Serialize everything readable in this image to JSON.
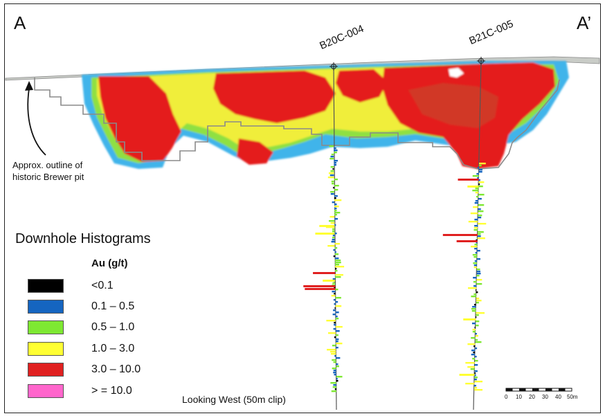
{
  "section": {
    "left_label": "A",
    "right_label": "A’",
    "drillholes": [
      {
        "name": "B20C-004"
      },
      {
        "name": "B21C-005"
      }
    ],
    "pit_annotation": [
      "Approx. outline of",
      "historic Brewer pit"
    ],
    "view_note": "Looking West (50m clip)"
  },
  "legend": {
    "title": "Downhole Histograms",
    "unit_header": "Au (g/t)",
    "classes": [
      {
        "label": "<0.1",
        "color": "#000000"
      },
      {
        "label": "0.1 – 0.5",
        "color": "#1565c0"
      },
      {
        "label": "0.5 – 1.0",
        "color": "#7ee832"
      },
      {
        "label": "1.0 – 3.0",
        "color": "#ffff33"
      },
      {
        "label": "3.0 – 10.0",
        "color": "#e02020"
      },
      {
        "label": "> = 10.0",
        "color": "#ff66cc"
      }
    ]
  },
  "scale_bar": {
    "ticks": [
      "0",
      "10",
      "20",
      "30",
      "40",
      "50m"
    ]
  },
  "colors": {
    "surface": "#c8ccc8",
    "pit_outline": "#8a8a8a",
    "grade_blue": "#3ab0e8",
    "grade_green": "#8de040",
    "grade_yellow": "#f2f23a",
    "grade_red": "#e82020"
  }
}
